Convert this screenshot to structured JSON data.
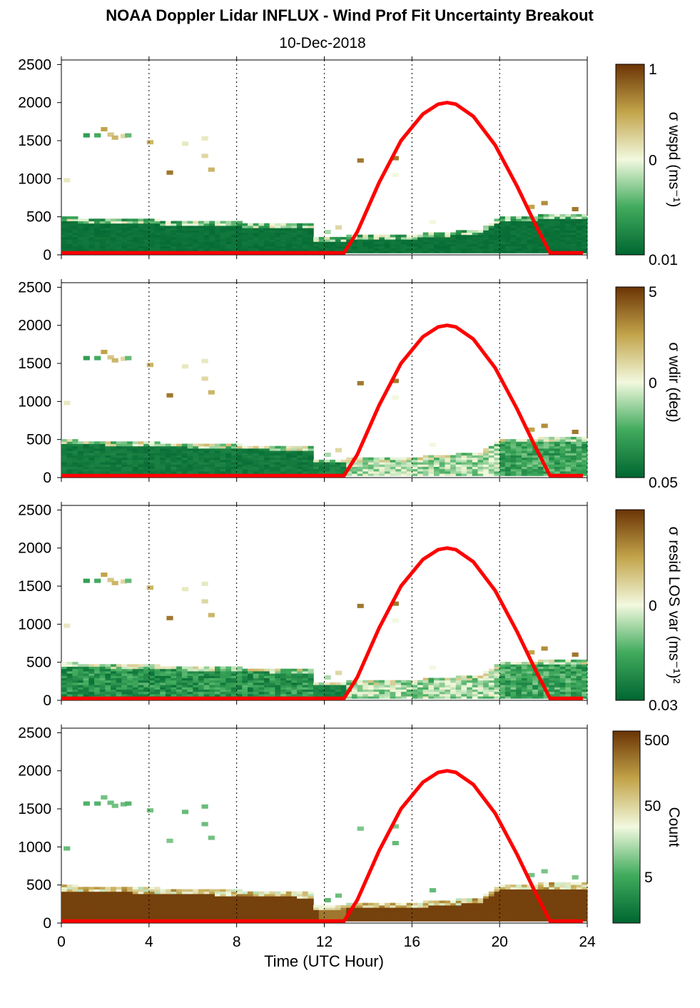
{
  "title": "NOAA Doppler Lidar INFLUX - Wind Prof Fit Uncertainty Breakout",
  "subtitle": "10-Dec-2018",
  "chart_data": {
    "type": "heatmap",
    "xlabel": "Time (UTC Hour)",
    "xlim": [
      0,
      24
    ],
    "xticks": [
      "0",
      "4",
      "8",
      "12",
      "16",
      "20",
      "24"
    ],
    "ylim": [
      0,
      2500
    ],
    "yticks": [
      "0",
      "500",
      "1000",
      "1500",
      "2000",
      "2500"
    ],
    "vertical_grid": "dotted at 4, 8, 12, 16, 20, 24",
    "colors": {
      "low": "#006631",
      "mid_low": "#41ab5d",
      "mid": "#f2f9df",
      "mid_high": "#c2a44a",
      "high": "#6b3405",
      "overlay": "#ff0000"
    },
    "overlay_curve": {
      "color": "#ff0000",
      "x": [
        0,
        12.9,
        13.5,
        14.5,
        15.5,
        16.5,
        17.2,
        17.6,
        18.0,
        18.8,
        19.8,
        20.8,
        21.6,
        22.3,
        23.8
      ],
      "y": [
        25,
        25,
        300,
        950,
        1500,
        1850,
        1980,
        2000,
        1980,
        1820,
        1440,
        900,
        420,
        25,
        25
      ]
    },
    "panels": [
      {
        "colorbar_label": "σ wspd (ms⁻¹)",
        "colorbar_ticks": [
          "1",
          "0",
          "0.01"
        ],
        "colorbar_min": "0.01",
        "colorbar_mid": "0",
        "colorbar_max": "1",
        "scheme": "uniform"
      },
      {
        "colorbar_label": "σ wdir (deg)",
        "colorbar_ticks": [
          "5",
          "0",
          "0.05"
        ],
        "colorbar_min": "0.05",
        "colorbar_mid": "0",
        "colorbar_max": "5",
        "scheme": "mixed"
      },
      {
        "colorbar_label": "σ resid LOS var (ms⁻¹)²",
        "colorbar_ticks": [
          "0",
          "0.03"
        ],
        "colorbar_min": "0.03",
        "colorbar_mid": "0",
        "colorbar_max": "",
        "scheme": "mixed2"
      },
      {
        "colorbar_label": "Count",
        "colorbar_ticks": [
          "500",
          "50",
          "5"
        ],
        "colorbar_min": "",
        "colorbar_mid": "5",
        "colorbar_mid2": "50",
        "colorbar_max": "500",
        "scheme": "count"
      }
    ],
    "field_profile": {
      "description_hours": [
        0,
        11.5,
        11.5,
        13,
        13,
        16,
        19,
        20,
        23.8
      ],
      "top_heights": [
        480,
        420,
        230,
        230,
        250,
        270,
        320,
        500,
        510
      ]
    },
    "scattered_cells": [
      {
        "x": 0.1,
        "y": 980,
        "v": 0.55
      },
      {
        "x": 1.0,
        "y": 1570,
        "v": 0.2
      },
      {
        "x": 1.5,
        "y": 1570,
        "v": 0.25
      },
      {
        "x": 1.8,
        "y": 1650,
        "v": 0.75
      },
      {
        "x": 2.1,
        "y": 1580,
        "v": 0.65
      },
      {
        "x": 2.3,
        "y": 1540,
        "v": 0.7
      },
      {
        "x": 2.7,
        "y": 1560,
        "v": 0.6
      },
      {
        "x": 2.9,
        "y": 1570,
        "v": 0.3
      },
      {
        "x": 3.9,
        "y": 1480,
        "v": 0.7
      },
      {
        "x": 4.8,
        "y": 1080,
        "v": 0.85
      },
      {
        "x": 5.5,
        "y": 1460,
        "v": 0.55
      },
      {
        "x": 6.4,
        "y": 1300,
        "v": 0.6
      },
      {
        "x": 6.4,
        "y": 1530,
        "v": 0.55
      },
      {
        "x": 6.7,
        "y": 1120,
        "v": 0.7
      },
      {
        "x": 13.5,
        "y": 1240,
        "v": 0.85
      },
      {
        "x": 15.1,
        "y": 1270,
        "v": 0.85
      },
      {
        "x": 15.1,
        "y": 1050,
        "v": 0.5
      },
      {
        "x": 12.5,
        "y": 360,
        "v": 0.6
      },
      {
        "x": 12.0,
        "y": 300,
        "v": 0.4
      },
      {
        "x": 16.8,
        "y": 430,
        "v": 0.5
      },
      {
        "x": 21.3,
        "y": 630,
        "v": 0.75
      },
      {
        "x": 21.9,
        "y": 680,
        "v": 0.8
      },
      {
        "x": 23.3,
        "y": 600,
        "v": 0.85
      }
    ]
  }
}
